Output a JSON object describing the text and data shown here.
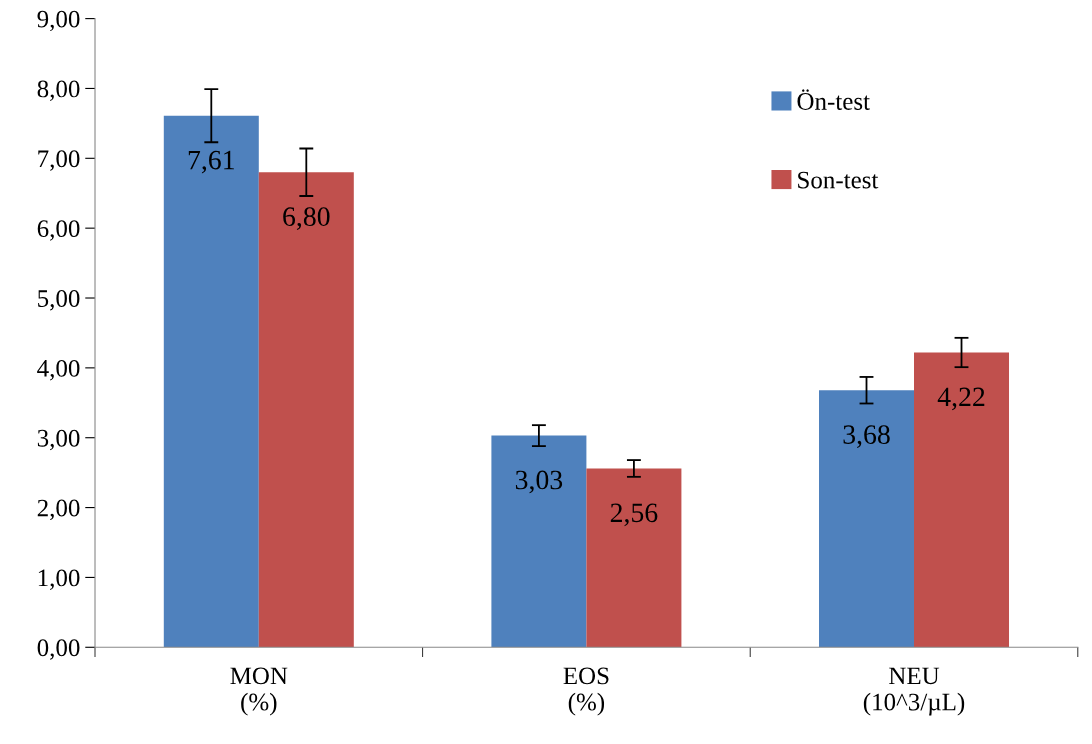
{
  "chart_data": {
    "type": "bar",
    "categories": [
      "MON\n(%)",
      "EOS\n(%)",
      "NEU\n(10^3/µL)"
    ],
    "series": [
      {
        "name": "Ön-test",
        "color": "#4f81bd",
        "values": [
          7.61,
          3.03,
          3.68
        ],
        "errors": [
          0.38,
          0.15,
          0.19
        ],
        "value_labels": [
          "7,61",
          "3,03",
          "3,68"
        ]
      },
      {
        "name": "Son-test",
        "color": "#c0504d",
        "values": [
          6.8,
          2.56,
          4.22
        ],
        "errors": [
          0.34,
          0.12,
          0.21
        ],
        "value_labels": [
          "6,80",
          "2,56",
          "4,22"
        ]
      }
    ],
    "ylim": [
      0,
      9
    ],
    "yticks": [
      {
        "value": 0,
        "label": "0,00"
      },
      {
        "value": 1,
        "label": "1,00"
      },
      {
        "value": 2,
        "label": "2,00"
      },
      {
        "value": 3,
        "label": "3,00"
      },
      {
        "value": 4,
        "label": "4,00"
      },
      {
        "value": 5,
        "label": "5,00"
      },
      {
        "value": 6,
        "label": "6,00"
      },
      {
        "value": 7,
        "label": "7,00"
      },
      {
        "value": 8,
        "label": "8,00"
      },
      {
        "value": 9,
        "label": "9,00"
      }
    ],
    "grid": false,
    "legend": "top right"
  }
}
